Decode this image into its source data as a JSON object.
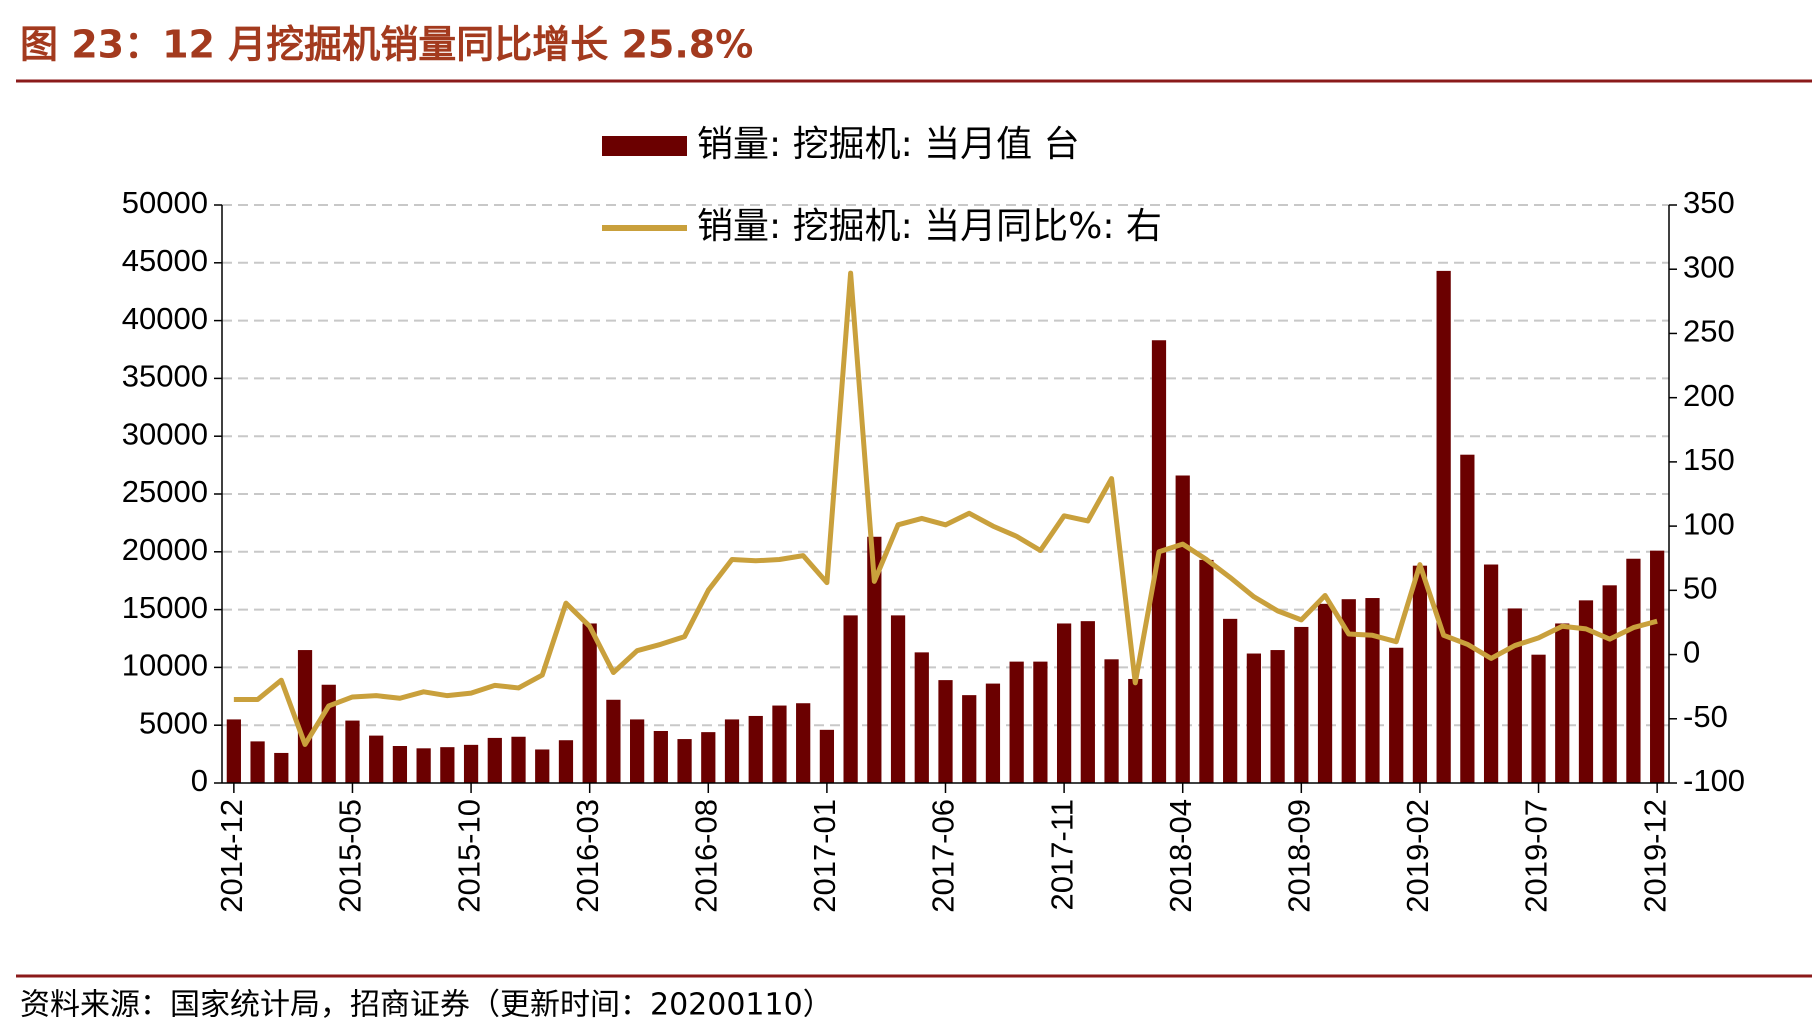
{
  "chart_data": {
    "type": "bar-line",
    "title": "图 23：12 月挖掘机销量同比增长 25.8%",
    "source": "资料来源：国家统计局，招商证券（更新时间：20200110）",
    "categories": [
      "2014-12",
      null,
      null,
      null,
      null,
      "2015-05",
      null,
      null,
      null,
      null,
      "2015-10",
      null,
      null,
      null,
      null,
      "2016-03",
      null,
      null,
      null,
      null,
      "2016-08",
      null,
      null,
      null,
      null,
      "2017-01",
      null,
      null,
      null,
      null,
      "2017-06",
      null,
      null,
      null,
      null,
      "2017-11",
      null,
      null,
      null,
      null,
      "2018-04",
      null,
      null,
      null,
      null,
      "2018-09",
      null,
      null,
      null,
      null,
      "2019-02",
      null,
      null,
      null,
      null,
      "2019-07",
      null,
      null,
      null,
      null,
      "2019-12"
    ],
    "series": [
      {
        "name": "销量: 挖掘机: 当月值  台",
        "type": "bar",
        "color": "#6b0000",
        "values": [
          5500,
          3600,
          2600,
          11500,
          8500,
          5400,
          4100,
          3200,
          3000,
          3100,
          3300,
          3900,
          4000,
          2900,
          3700,
          13800,
          7200,
          5500,
          4500,
          3800,
          4400,
          5500,
          5800,
          6700,
          6900,
          4600,
          14500,
          21300,
          14500,
          11300,
          8900,
          7600,
          8600,
          10500,
          10500,
          13800,
          14000,
          10700,
          9000,
          38300,
          26600,
          19300,
          14200,
          11200,
          11500,
          13500,
          15500,
          15900,
          16000,
          11700,
          18800,
          44300,
          28400,
          18900,
          15100,
          11100,
          13800,
          15800,
          17100,
          19400,
          20100
        ]
      },
      {
        "name": "销量: 挖掘机: 当月同比%: 右",
        "type": "line",
        "axis": "y2",
        "color": "#c9a03c",
        "values": [
          -35,
          -35,
          -20,
          -70,
          -40,
          -33,
          -32,
          -34,
          -29,
          -32,
          -30,
          -24,
          -26,
          -16,
          40,
          22,
          -14,
          3,
          8,
          14,
          50,
          74,
          73,
          74,
          77,
          56,
          297,
          57,
          101,
          106,
          101,
          110,
          100,
          92,
          81,
          108,
          104,
          137,
          -22,
          80,
          86,
          74,
          60,
          45,
          34,
          27,
          46,
          16,
          15,
          10,
          70,
          15,
          8,
          -3,
          7,
          13,
          22,
          20,
          12,
          21,
          26
        ]
      }
    ],
    "ylim": [
      0,
      50000
    ],
    "yticks": [
      0,
      5000,
      10000,
      15000,
      20000,
      25000,
      30000,
      35000,
      40000,
      45000,
      50000
    ],
    "y2lim": [
      -100,
      350
    ],
    "y2ticks": [
      -100,
      -50,
      0,
      50,
      100,
      150,
      200,
      250,
      300,
      350
    ],
    "grid": true
  }
}
